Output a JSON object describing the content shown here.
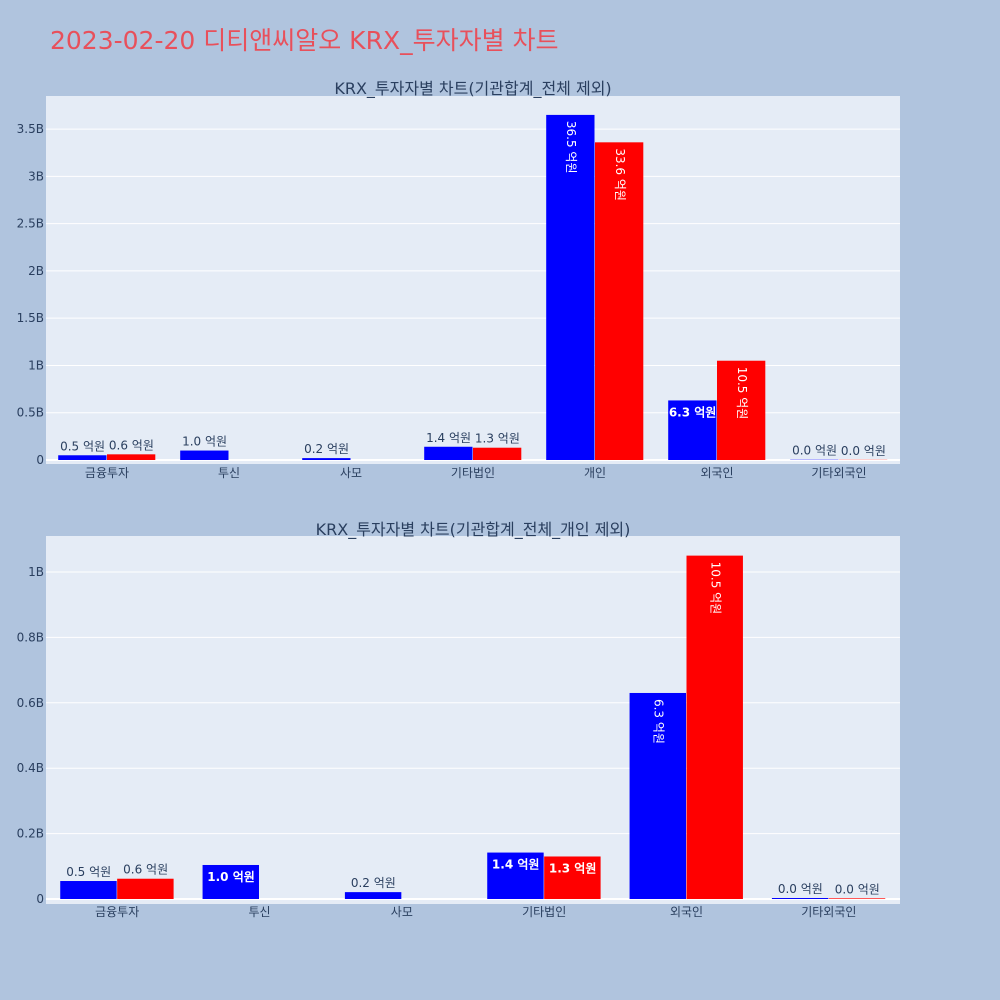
{
  "page": {
    "title": "2023-02-20 디티앤씨알오 KRX_투자자별 차트",
    "background": "#b0c4de",
    "plot_background": "#e5ecf6",
    "title_color": "#e8505b"
  },
  "chart_data": [
    {
      "type": "bar",
      "title": "KRX_투자자별 차트(기관합계_전체 제외)",
      "categories": [
        "금융투자",
        "투신",
        "사모",
        "기타법인",
        "개인",
        "외국인",
        "기타외국인"
      ],
      "series": [
        {
          "color": "#0000ff",
          "values": [
            50000000,
            100000000,
            20000000,
            140000000,
            3650000000,
            630000000,
            3000000
          ],
          "labels": [
            "0.5 억원",
            "1.0 억원",
            "0.2 억원",
            "1.4 억원",
            "36.5 억원",
            "6.3 억원",
            "0.0 억원"
          ]
        },
        {
          "color": "#ff0000",
          "values": [
            60000000,
            0,
            0,
            130000000,
            3360000000,
            1050000000,
            2000000
          ],
          "labels": [
            "0.6 억원",
            "",
            "",
            "1.3 억원",
            "33.6 억원",
            "10.5 억원",
            "0.0 억원"
          ]
        }
      ],
      "ylim": [
        0,
        3850000000
      ],
      "yticks": [
        0,
        500000000,
        1000000000,
        1500000000,
        2000000000,
        2500000000,
        3000000000,
        3500000000
      ],
      "yticklabels": [
        "0",
        "0.5B",
        "1B",
        "1.5B",
        "2B",
        "2.5B",
        "3B",
        "3.5B"
      ],
      "grid": true
    },
    {
      "type": "bar",
      "title": "KRX_투자자별 차트(기관합계_전체_개인 제외)",
      "categories": [
        "금융투자",
        "투신",
        "사모",
        "기타법인",
        "외국인",
        "기타외국인"
      ],
      "series": [
        {
          "color": "#0000ff",
          "values": [
            55000000,
            104000000,
            21000000,
            142000000,
            630000000,
            3000000
          ],
          "labels": [
            "0.5 억원",
            "1.0 억원",
            "0.2 억원",
            "1.4 억원",
            "6.3 억원",
            "0.0 억원"
          ]
        },
        {
          "color": "#ff0000",
          "values": [
            62000000,
            0,
            0,
            130000000,
            1050000000,
            2000000
          ],
          "labels": [
            "0.6 억원",
            "",
            "",
            "1.3 억원",
            "10.5 억원",
            "0.0 억원"
          ]
        }
      ],
      "ylim": [
        0,
        1110000000
      ],
      "yticks": [
        0,
        200000000,
        400000000,
        600000000,
        800000000,
        1000000000
      ],
      "yticklabels": [
        "0",
        "0.2B",
        "0.4B",
        "0.6B",
        "0.8B",
        "1B"
      ],
      "grid": true
    }
  ]
}
